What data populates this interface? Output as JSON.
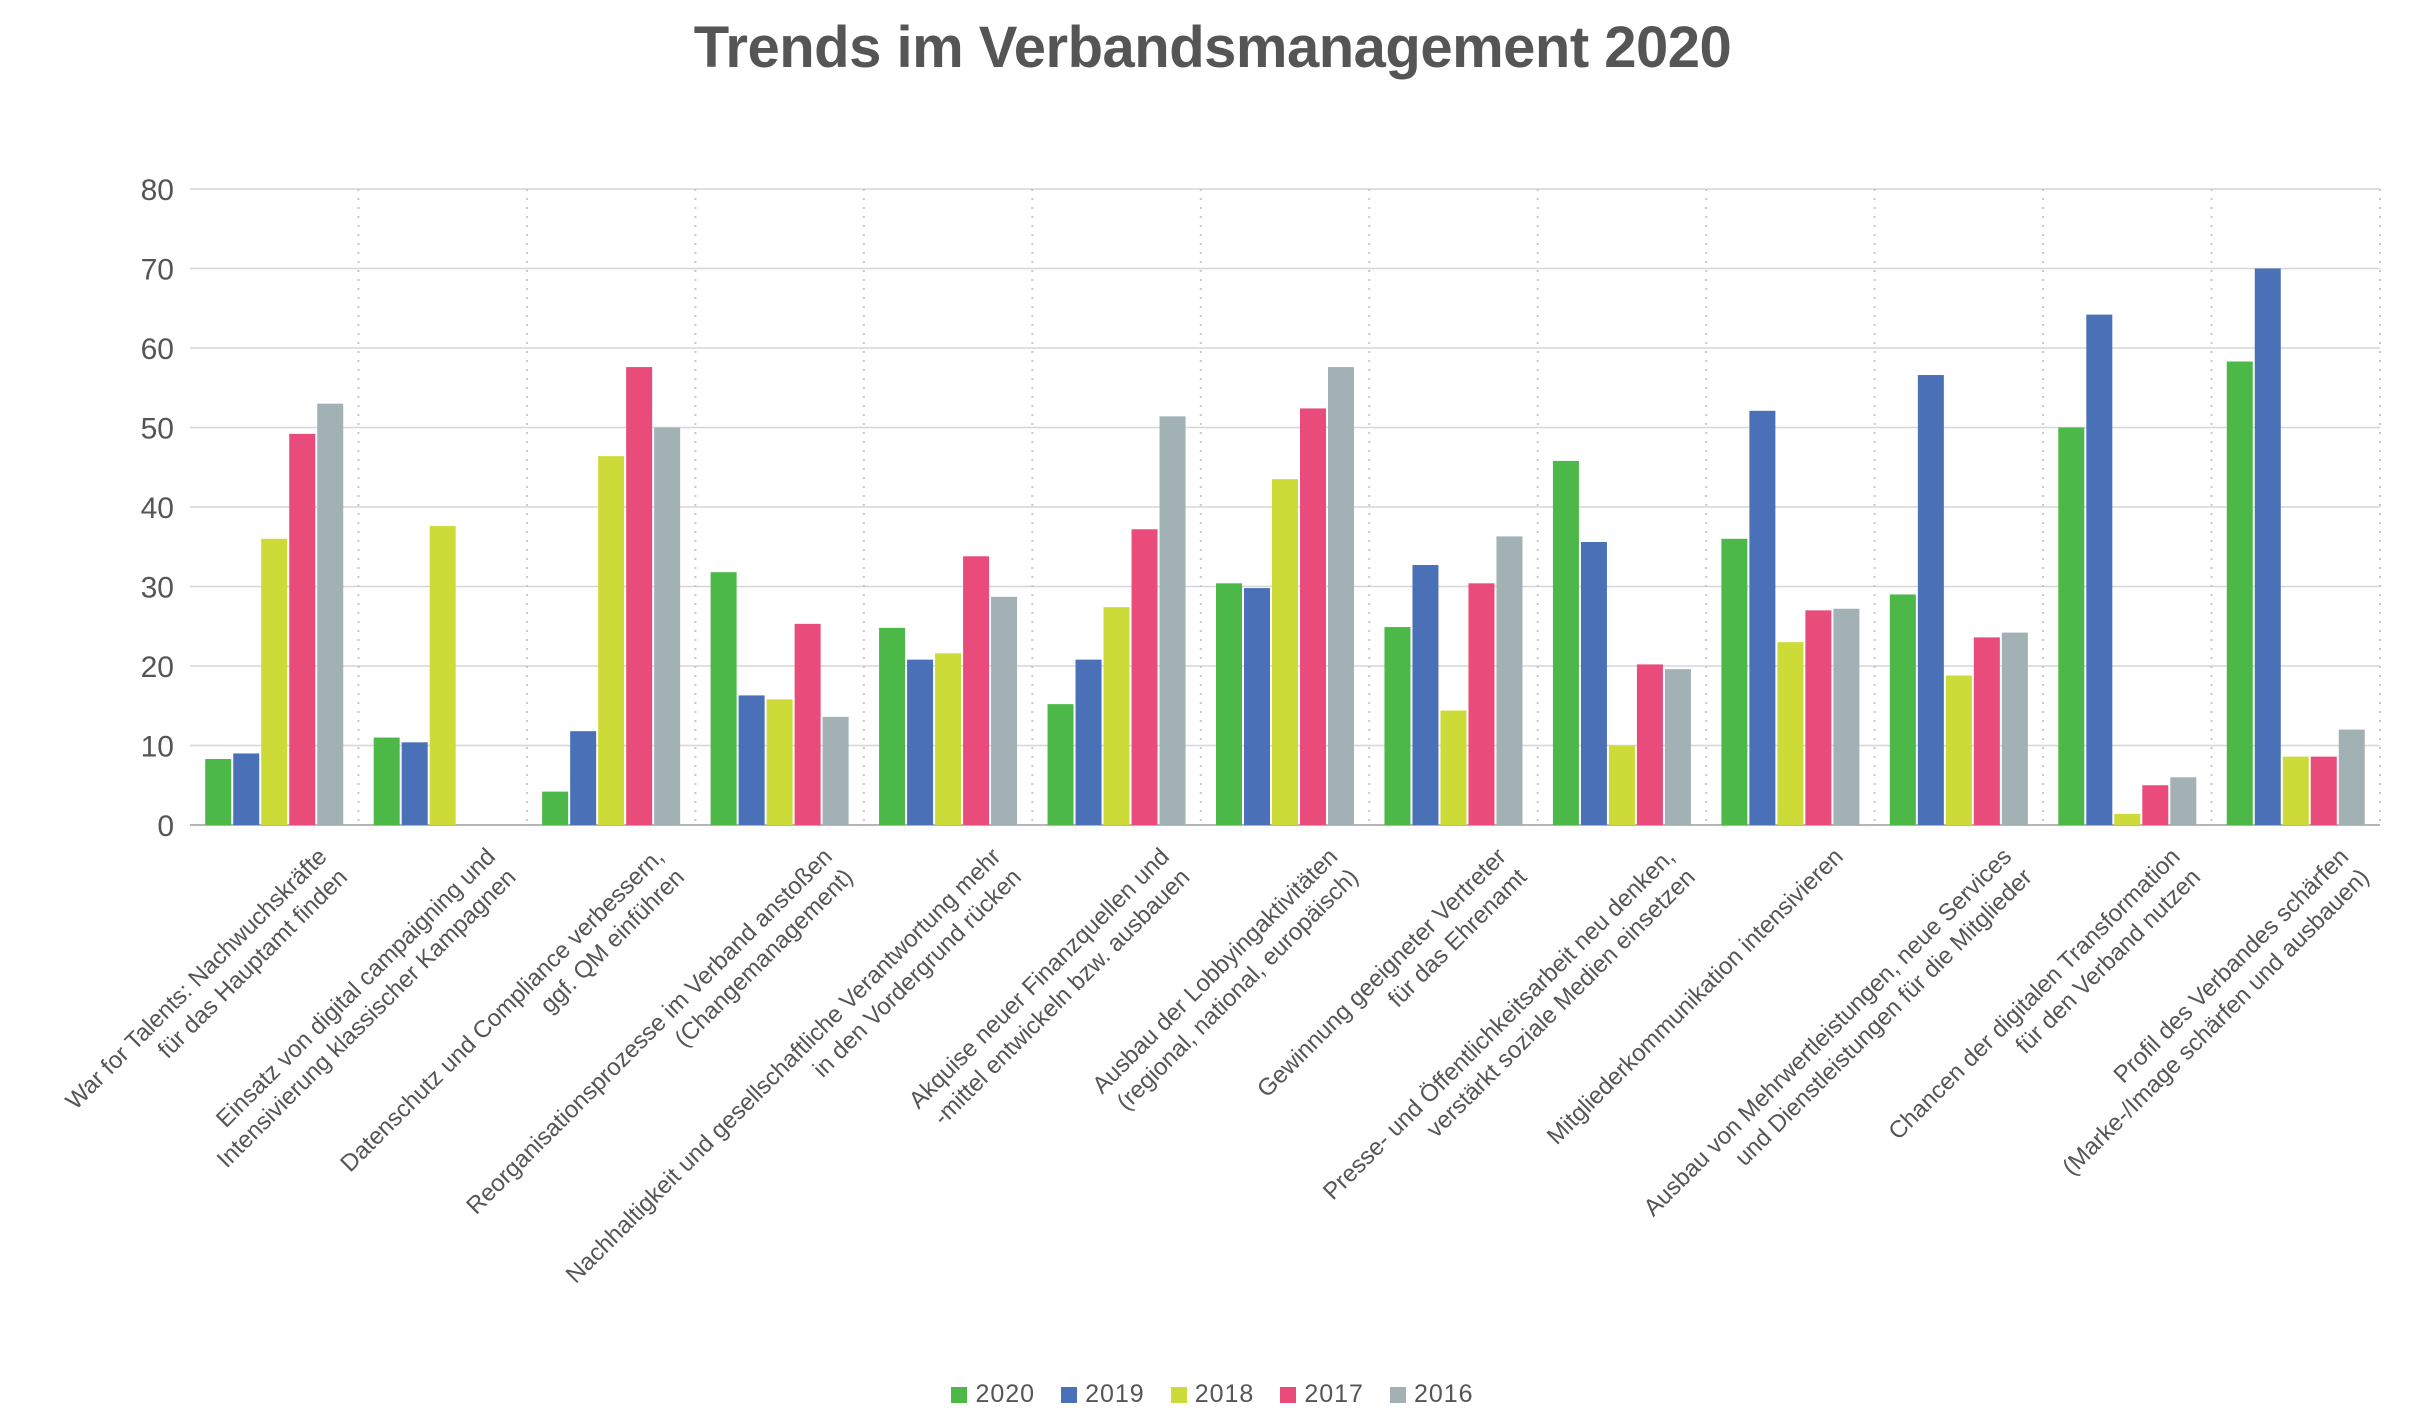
{
  "chart_data": {
    "type": "bar",
    "title": "Trends im Verbandsmanagement 2020",
    "xlabel": "",
    "ylabel": "",
    "ylim": [
      0,
      80
    ],
    "yticks": [
      0,
      10,
      20,
      30,
      40,
      50,
      60,
      70,
      80
    ],
    "grid": "horizontal solid, vertical dotted",
    "legend_position": "bottom",
    "categories": [
      [
        "War for Talents: Nachwuchskräfte",
        "für das Hauptamt finden"
      ],
      [
        "Einsatz von digital campaigning und",
        "Intensivierung klassischer Kampagnen"
      ],
      [
        "Datenschutz und Compliance verbessern,",
        "ggf. QM einführen"
      ],
      [
        "Reorganisationsprozesse im Verband anstoßen",
        "(Changemanagement)"
      ],
      [
        "Nachhaltigkeit und gesellschaftliche Verantwortung mehr",
        "in den Vordergrund rücken"
      ],
      [
        "Akquise neuer Finanzquellen und",
        "-mittel entwickeln bzw. ausbauen"
      ],
      [
        "Ausbau der Lobbyingaktivitäten",
        "(regional, national, europäisch)"
      ],
      [
        "Gewinnung geeigneter Vertreter",
        "für das Ehrenamt"
      ],
      [
        "Presse- und Öffentlichkeitsarbeit neu denken,",
        "verstärkt soziale Medien einsetzen"
      ],
      [
        "Mitgliederkommunikation intensivieren"
      ],
      [
        "Ausbau von Mehrwertleistungen, neue Services",
        "und Dienstleistungen für die Mitglieder"
      ],
      [
        "Chancen der digitalen Transformation",
        "für den Verband nutzen"
      ],
      [
        "Profil des Verbandes schärfen",
        "(Marke-/Image schärfen und ausbauen)"
      ]
    ],
    "series": [
      {
        "name": "2020",
        "color": "#4cb848",
        "values": [
          8.3,
          11,
          4.2,
          31.8,
          24.8,
          15.2,
          30.4,
          24.9,
          45.8,
          36,
          29,
          50,
          58.3
        ]
      },
      {
        "name": "2019",
        "color": "#4a70b8",
        "values": [
          9,
          10.4,
          11.8,
          16.3,
          20.8,
          20.8,
          29.8,
          32.7,
          35.6,
          52.1,
          56.6,
          64.2,
          70
        ]
      },
      {
        "name": "2018",
        "color": "#ccdb38",
        "values": [
          36,
          37.6,
          46.4,
          15.8,
          21.6,
          27.4,
          43.5,
          14.4,
          10,
          23,
          18.8,
          1.4,
          8.6
        ]
      },
      {
        "name": "2017",
        "color": "#e94b7a",
        "values": [
          49.2,
          null,
          57.6,
          25.3,
          33.8,
          37.2,
          52.4,
          30.4,
          20.2,
          27,
          23.6,
          5,
          8.6
        ]
      },
      {
        "name": "2016",
        "color": "#a2b1b4",
        "values": [
          53,
          null,
          50,
          13.6,
          28.7,
          51.4,
          57.6,
          36.3,
          19.6,
          27.2,
          24.2,
          6,
          12
        ]
      }
    ]
  }
}
